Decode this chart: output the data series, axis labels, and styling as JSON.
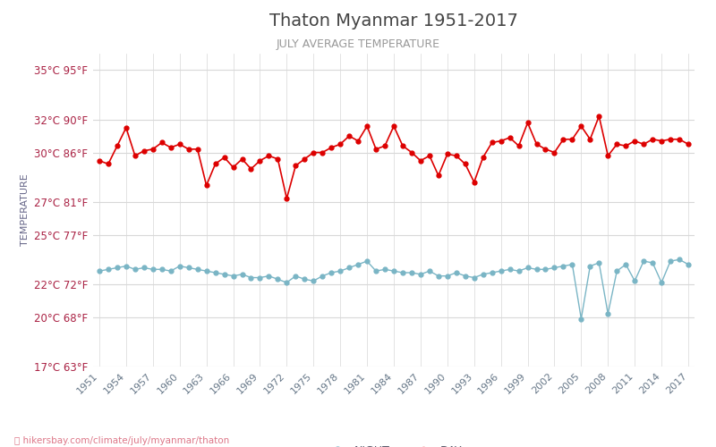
{
  "title": "Thaton Myanmar 1951-2017",
  "subtitle": "JULY AVERAGE TEMPERATURE",
  "ylabel": "TEMPERATURE",
  "url": "hikersbay.com/climate/july/myanmar/thaton",
  "years": [
    1951,
    1952,
    1953,
    1954,
    1955,
    1956,
    1957,
    1958,
    1959,
    1960,
    1961,
    1962,
    1963,
    1964,
    1965,
    1966,
    1967,
    1968,
    1969,
    1970,
    1971,
    1972,
    1973,
    1974,
    1975,
    1976,
    1977,
    1978,
    1979,
    1980,
    1981,
    1982,
    1983,
    1984,
    1985,
    1986,
    1987,
    1988,
    1989,
    1990,
    1991,
    1992,
    1993,
    1994,
    1995,
    1996,
    1997,
    1998,
    1999,
    2000,
    2001,
    2002,
    2003,
    2004,
    2005,
    2006,
    2007,
    2008,
    2009,
    2010,
    2011,
    2012,
    2013,
    2014,
    2015,
    2016,
    2017
  ],
  "day_temps": [
    29.5,
    29.3,
    30.4,
    31.5,
    29.8,
    30.1,
    30.2,
    30.6,
    30.3,
    30.5,
    30.2,
    30.2,
    28.0,
    29.3,
    29.7,
    29.1,
    29.6,
    29.0,
    29.5,
    29.8,
    29.6,
    27.2,
    29.2,
    29.6,
    30.0,
    30.0,
    30.3,
    30.5,
    31.0,
    30.7,
    31.6,
    30.2,
    30.4,
    31.6,
    30.4,
    30.0,
    29.5,
    29.8,
    28.6,
    29.9,
    29.8,
    29.3,
    28.2,
    29.7,
    30.6,
    30.7,
    30.9,
    30.4,
    31.8,
    30.5,
    30.2,
    30.0,
    30.8,
    30.8,
    31.6,
    30.8,
    32.2,
    29.8,
    30.5,
    30.4,
    30.7,
    30.5,
    30.8,
    30.7,
    30.8,
    30.8,
    30.5
  ],
  "night_temps": [
    22.8,
    22.9,
    23.0,
    23.1,
    22.9,
    23.0,
    22.9,
    22.9,
    22.8,
    23.1,
    23.0,
    22.9,
    22.8,
    22.7,
    22.6,
    22.5,
    22.6,
    22.4,
    22.4,
    22.5,
    22.3,
    22.1,
    22.5,
    22.3,
    22.2,
    22.5,
    22.7,
    22.8,
    23.0,
    23.2,
    23.4,
    22.8,
    22.9,
    22.8,
    22.7,
    22.7,
    22.6,
    22.8,
    22.5,
    22.5,
    22.7,
    22.5,
    22.4,
    22.6,
    22.7,
    22.8,
    22.9,
    22.8,
    23.0,
    22.9,
    22.9,
    23.0,
    23.1,
    23.2,
    19.9,
    23.1,
    23.3,
    20.2,
    22.8,
    23.2,
    22.2,
    23.4,
    23.3,
    22.1,
    23.4,
    23.5,
    23.2
  ],
  "day_color": "#dd0000",
  "night_color": "#7ab5c5",
  "background_color": "#ffffff",
  "grid_color": "#d8d8d8",
  "title_color": "#444444",
  "subtitle_color": "#999999",
  "ylabel_color": "#666688",
  "tick_color_y": "#aa2244",
  "tick_color_x": "#667788",
  "url_color": "#dd7788",
  "ylim_celsius": [
    17,
    36
  ],
  "yticks_celsius": [
    17,
    20,
    22,
    25,
    27,
    30,
    32,
    35
  ],
  "yticks_fahrenheit": [
    63,
    68,
    72,
    77,
    81,
    86,
    90,
    95
  ],
  "xtick_years": [
    1951,
    1954,
    1957,
    1960,
    1963,
    1966,
    1969,
    1972,
    1975,
    1978,
    1981,
    1984,
    1987,
    1990,
    1993,
    1996,
    1999,
    2002,
    2005,
    2008,
    2011,
    2014,
    2017
  ],
  "xlim": [
    1950.3,
    2017.7
  ]
}
